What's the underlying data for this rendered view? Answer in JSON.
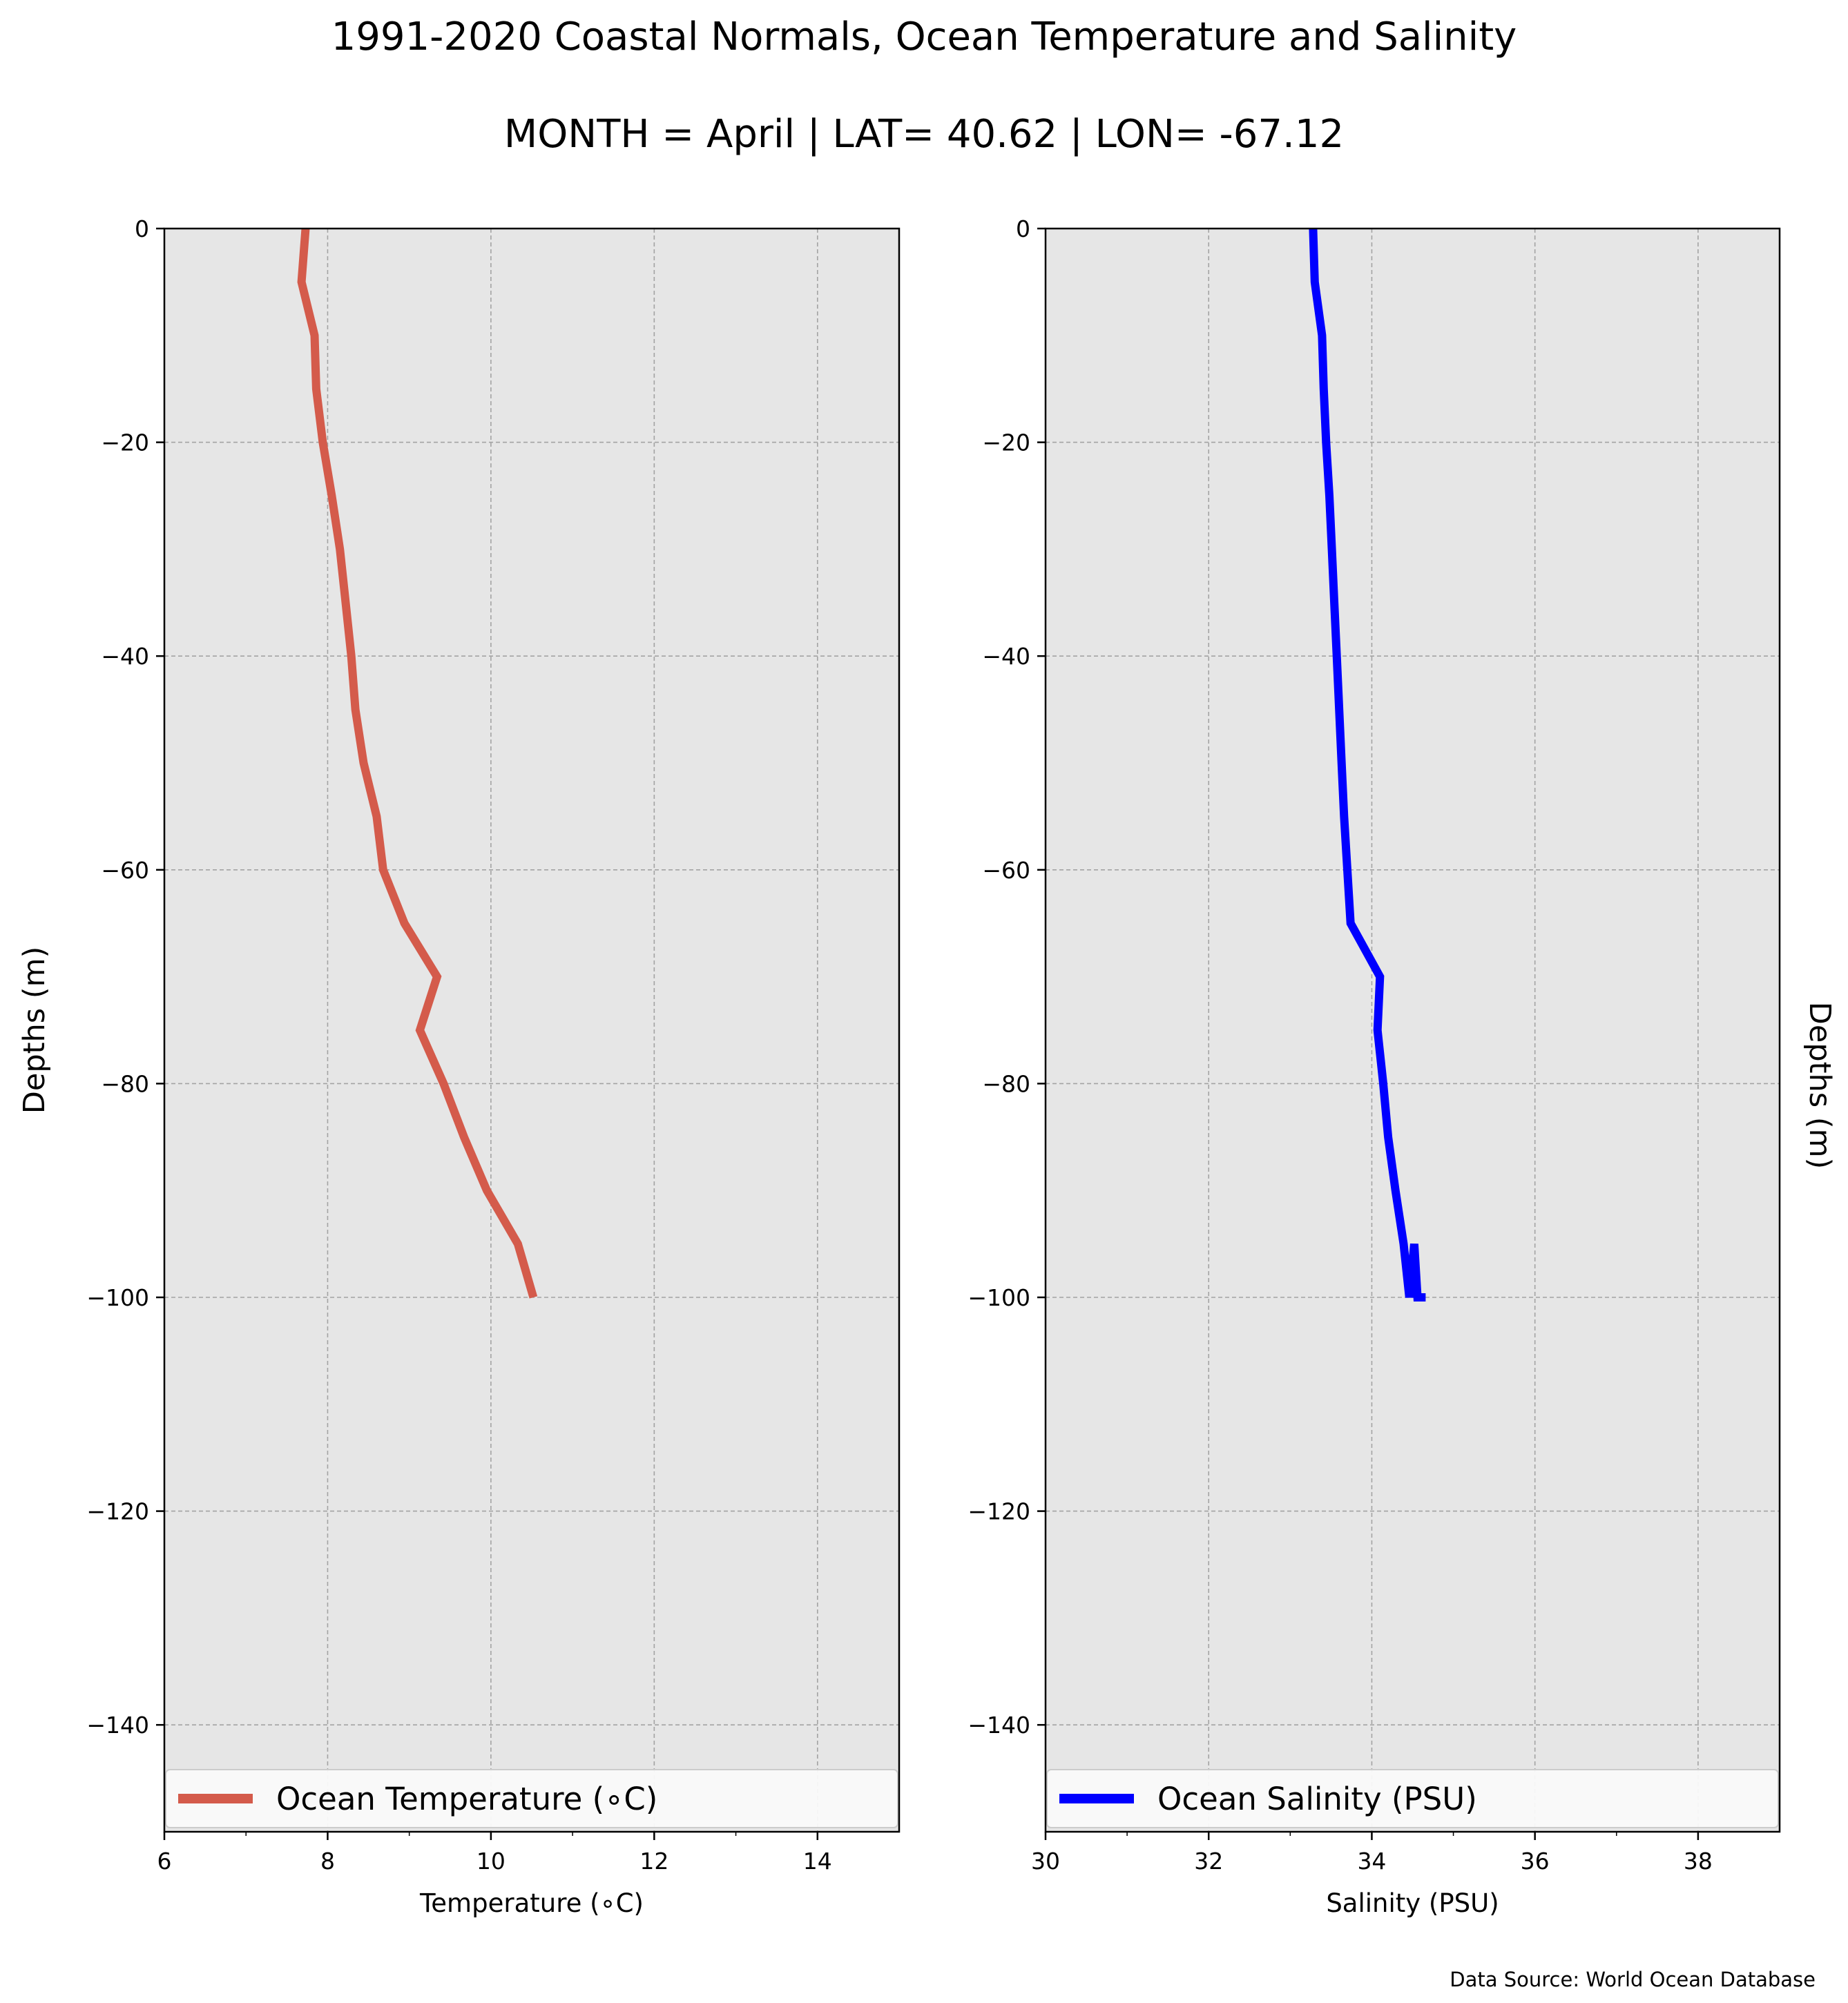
{
  "figure": {
    "title": "1991-2020 Coastal Normals, Ocean Temperature and Salinity",
    "subtitle": "MONTH = April | LAT= 40.62 | LON= -67.12",
    "source": "Data Source: World Ocean Database",
    "background": "#ffffff"
  },
  "chart_data": [
    {
      "type": "line",
      "id": "temperature",
      "xlabel": "Temperature (∘C)",
      "ylabel": "Depths (m)",
      "xlim": [
        6,
        15
      ],
      "ylim": [
        -150,
        0
      ],
      "xticks": [
        6,
        8,
        10,
        12,
        14
      ],
      "yticks": [
        0,
        -20,
        -40,
        -60,
        -80,
        -100,
        -120,
        -140
      ],
      "xtick_labels": [
        "6",
        "8",
        "10",
        "12",
        "14"
      ],
      "ytick_labels": [
        "0",
        "−20",
        "−40",
        "−60",
        "−80",
        "−100",
        "−120",
        "−140"
      ],
      "grid": true,
      "legend_position": "bottom",
      "plot_background": "#e6e6e6",
      "series": [
        {
          "name": "Ocean Temperature (∘C)",
          "color": "#d45b4b",
          "x": [
            7.73,
            7.68,
            7.84,
            7.86,
            7.94,
            8.05,
            8.15,
            8.22,
            8.29,
            8.34,
            8.44,
            8.6,
            8.68,
            8.94,
            9.34,
            9.13,
            9.42,
            9.67,
            9.95,
            10.33,
            10.52
          ],
          "y": [
            0,
            -5,
            -10,
            -15,
            -20,
            -25,
            -30,
            -35,
            -40,
            -45,
            -50,
            -55,
            -60,
            -65,
            -70,
            -75,
            -80,
            -85,
            -90,
            -95,
            -100
          ]
        }
      ]
    },
    {
      "type": "line",
      "id": "salinity",
      "xlabel": "Salinity (PSU)",
      "ylabel": "Depths (m)",
      "xlim": [
        30,
        39
      ],
      "ylim": [
        -150,
        0
      ],
      "xticks": [
        30,
        32,
        34,
        36,
        38
      ],
      "yticks": [
        0,
        -20,
        -40,
        -60,
        -80,
        -100,
        -120,
        -140
      ],
      "xtick_labels": [
        "30",
        "32",
        "34",
        "36",
        "38"
      ],
      "ytick_labels": [
        "0",
        "−20",
        "−40",
        "−60",
        "−80",
        "−100",
        "−120",
        "−140"
      ],
      "grid": true,
      "legend_position": "bottom",
      "plot_background": "#e6e6e6",
      "series": [
        {
          "name": "Ocean Salinity (PSU)",
          "color": "#0000ff",
          "x": [
            33.28,
            33.3,
            33.39,
            33.41,
            33.44,
            33.48,
            33.51,
            33.54,
            33.57,
            33.6,
            33.63,
            33.66,
            33.7,
            33.74,
            34.1,
            34.07,
            34.14,
            34.2,
            34.29,
            34.39,
            34.46,
            34.52,
            34.56,
            34.63,
            34.66
          ],
          "y": [
            0,
            -5,
            -10,
            -15,
            -20,
            -25,
            -30,
            -35,
            -40,
            -45,
            -50,
            -55,
            -60,
            -65,
            -70,
            -75,
            -80,
            -85,
            -90,
            -95,
            -100,
            -95,
            -100,
            -100,
            -100
          ]
        }
      ]
    }
  ]
}
